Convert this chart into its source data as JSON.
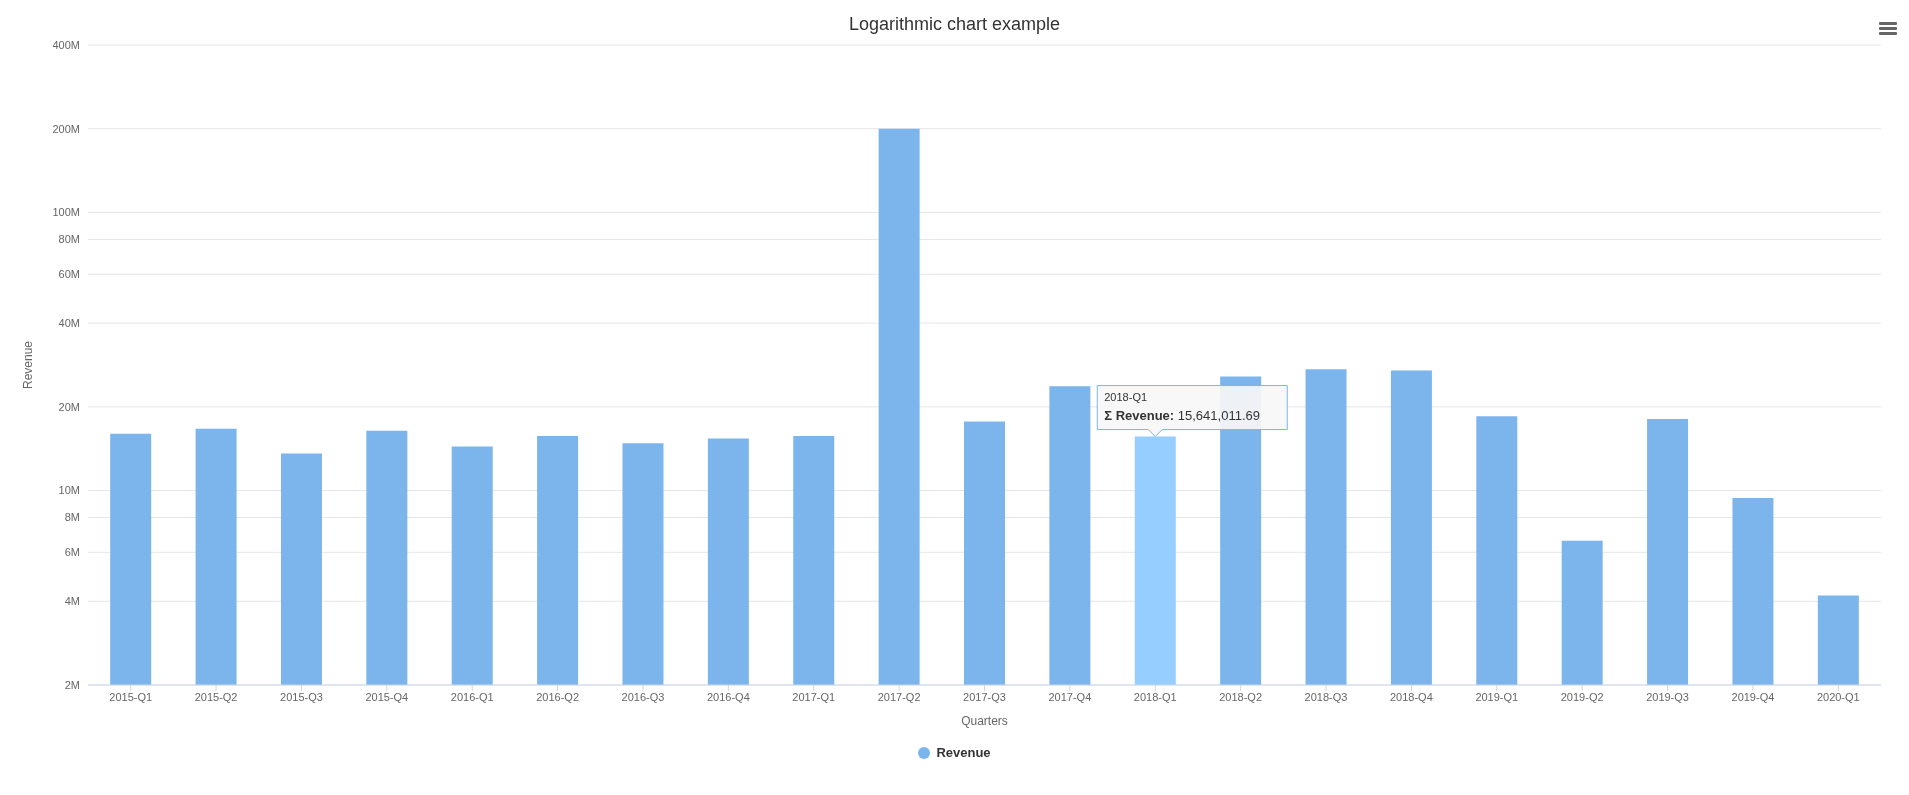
{
  "chart_data": {
    "type": "bar",
    "title": "Logarithmic chart example",
    "xlabel": "Quarters",
    "ylabel": "Revenue",
    "categories": [
      "2015-Q1",
      "2015-Q2",
      "2015-Q3",
      "2015-Q4",
      "2016-Q1",
      "2016-Q2",
      "2016-Q3",
      "2016-Q4",
      "2017-Q1",
      "2017-Q2",
      "2017-Q3",
      "2017-Q4",
      "2018-Q1",
      "2018-Q2",
      "2018-Q3",
      "2018-Q4",
      "2019-Q1",
      "2019-Q2",
      "2019-Q3",
      "2019-Q4",
      "2020-Q1"
    ],
    "series": [
      {
        "name": "Revenue",
        "color": "#7cb5ec",
        "values": [
          16000000,
          16700000,
          13600000,
          16400000,
          14400000,
          15700000,
          14800000,
          15400000,
          15700000,
          200000000,
          17700000,
          23700000,
          15641011.69,
          25700000,
          27300000,
          27000000,
          18500000,
          6600000,
          18100000,
          9400000,
          4200000
        ],
        "colors": [
          "#7cb5ec",
          "#7cb5ec",
          "#7cb5ec",
          "#7cb5ec",
          "#7cb5ec",
          "#7cb5ec",
          "#7cb5ec",
          "#7cb5ec",
          "#7cb5ec",
          "#7cb5ec",
          "#7cb5ec",
          "#7cb5ec",
          "#95ceff",
          "#7cb5ec",
          "#7cb5ec",
          "#7cb5ec",
          "#7cb5ec",
          "#7cb5ec",
          "#7cb5ec",
          "#7cb5ec",
          "#7cb5ec"
        ]
      }
    ],
    "log": "y",
    "ylim": [
      2000000,
      400000000
    ],
    "yticks": [
      {
        "value": 2000000,
        "label": "2M"
      },
      {
        "value": 4000000,
        "label": "4M"
      },
      {
        "value": 6000000,
        "label": "6M"
      },
      {
        "value": 8000000,
        "label": "8M"
      },
      {
        "value": 10000000,
        "label": "10M"
      },
      {
        "value": 20000000,
        "label": "20M"
      },
      {
        "value": 40000000,
        "label": "40M"
      },
      {
        "value": 60000000,
        "label": "60M"
      },
      {
        "value": 80000000,
        "label": "80M"
      },
      {
        "value": 100000000,
        "label": "100M"
      },
      {
        "value": 200000000,
        "label": "200M"
      },
      {
        "value": 400000000,
        "label": "400M"
      }
    ],
    "grid": "y",
    "legend": "bottom",
    "marker": "circle",
    "annotations": [
      {
        "text": "2018-Q1\nΣ Revenue: 15,641,011.69",
        "x": "2018-Q1",
        "y": 15641011.69
      }
    ]
  }
}
